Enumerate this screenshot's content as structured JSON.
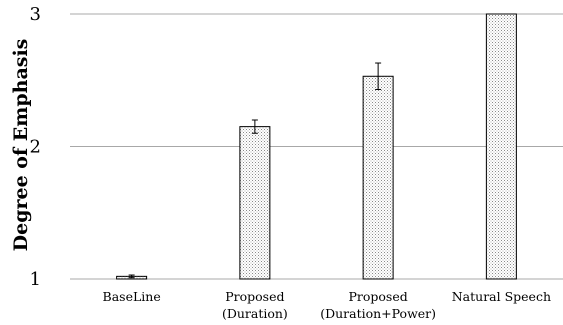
{
  "chart_data": {
    "type": "bar",
    "categories": [
      [
        "BaseLine"
      ],
      [
        "Proposed",
        "(Duration)"
      ],
      [
        "Proposed",
        "(Duration+Power)"
      ],
      [
        "Natural Speech"
      ]
    ],
    "values": [
      1.02,
      2.15,
      2.53,
      3.0
    ],
    "errors": [
      0.01,
      0.05,
      0.1,
      null
    ],
    "xlabel": "",
    "ylabel": "Degree of Emphasis",
    "ylim": [
      1,
      3
    ],
    "yticks": [
      1,
      2,
      3
    ],
    "grid": true,
    "bar_fill": "dotted-light-gray"
  }
}
